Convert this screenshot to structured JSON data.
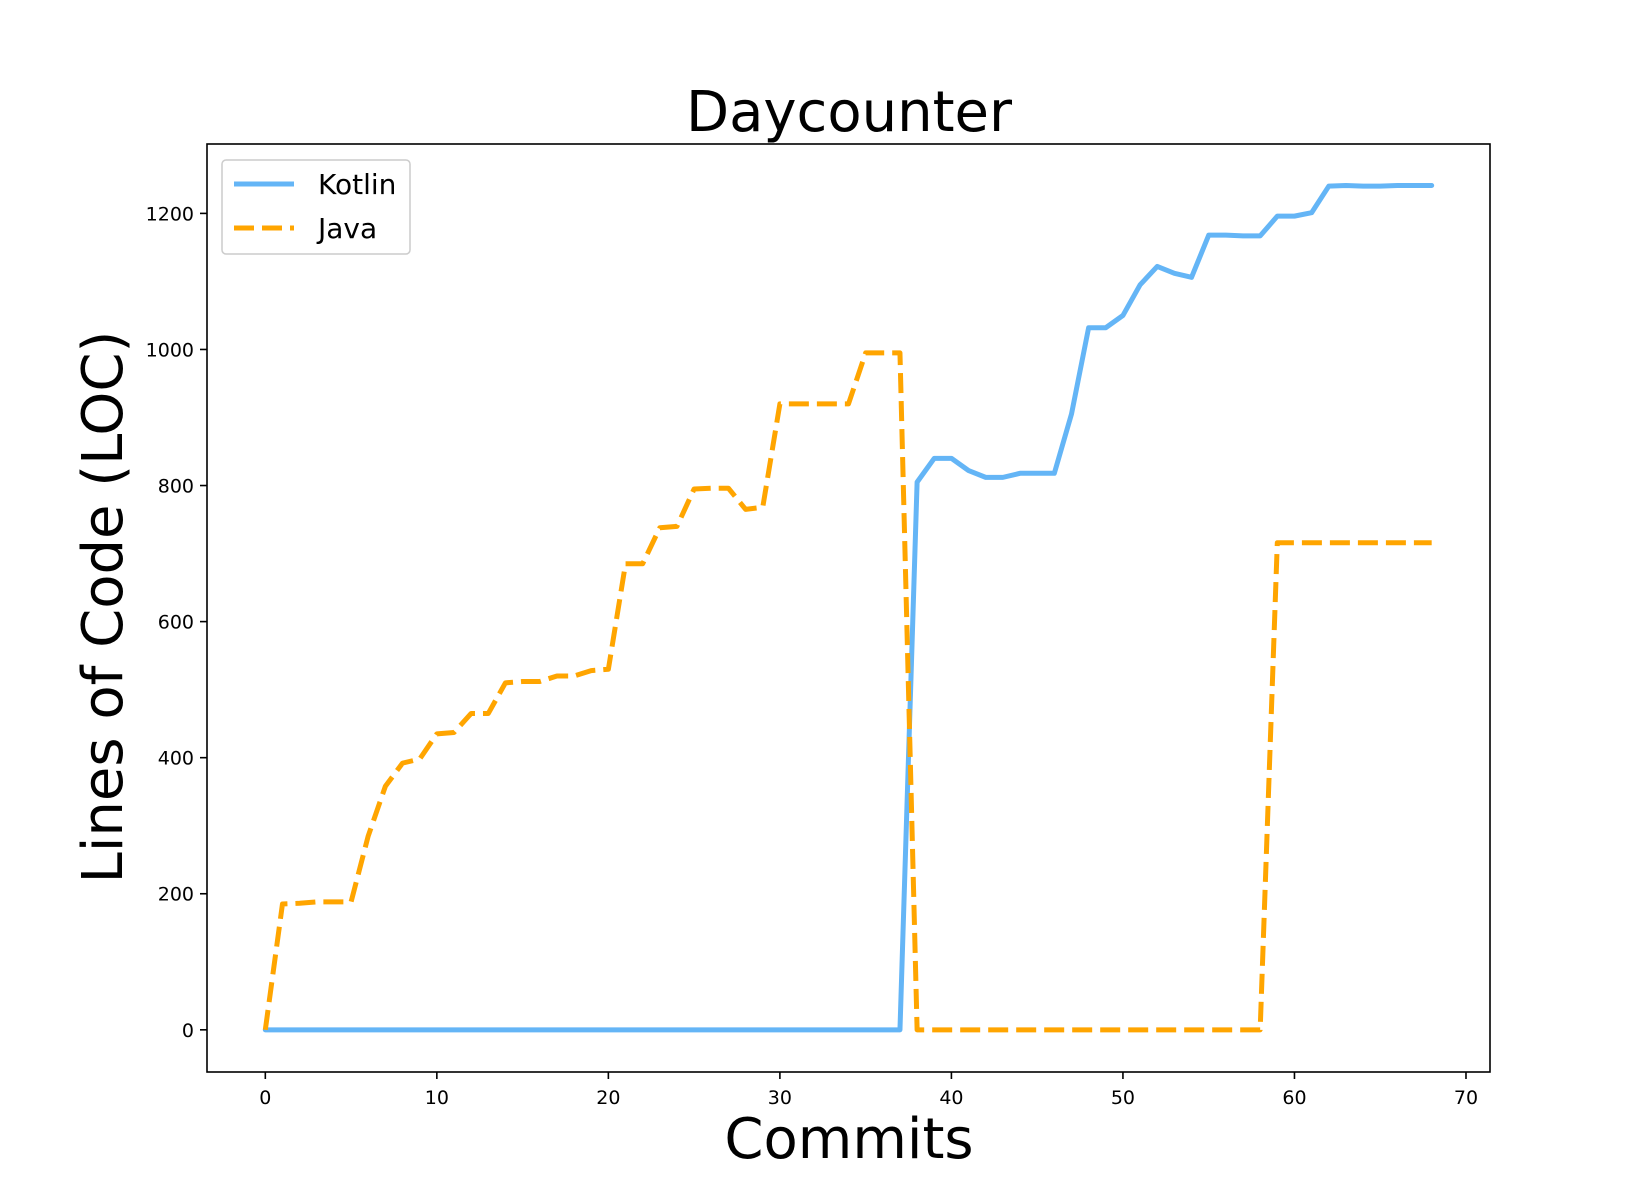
{
  "chart_data": {
    "type": "line",
    "title": "Daycounter",
    "xlabel": "Commits",
    "ylabel": "Lines of Code (LOC)",
    "xlim": [
      -3.4,
      71.4
    ],
    "ylim": [
      -62,
      1302
    ],
    "xticks": [
      0,
      10,
      20,
      30,
      40,
      50,
      60,
      70
    ],
    "yticks": [
      0,
      200,
      400,
      600,
      800,
      1000,
      1200
    ],
    "grid": false,
    "legend_position": "top-left",
    "series": [
      {
        "name": "Kotlin",
        "color": "#64b5f6",
        "style": "solid",
        "x": [
          0,
          1,
          2,
          3,
          4,
          5,
          6,
          7,
          8,
          9,
          10,
          11,
          12,
          13,
          14,
          15,
          16,
          17,
          18,
          19,
          20,
          21,
          22,
          23,
          24,
          25,
          26,
          27,
          28,
          29,
          30,
          31,
          32,
          33,
          34,
          35,
          36,
          37,
          38,
          39,
          40,
          41,
          42,
          43,
          44,
          45,
          46,
          47,
          48,
          49,
          50,
          51,
          52,
          53,
          54,
          55,
          56,
          57,
          58,
          59,
          60,
          61,
          62,
          63,
          64,
          65,
          66,
          67,
          68
        ],
        "y": [
          0,
          0,
          0,
          0,
          0,
          0,
          0,
          0,
          0,
          0,
          0,
          0,
          0,
          0,
          0,
          0,
          0,
          0,
          0,
          0,
          0,
          0,
          0,
          0,
          0,
          0,
          0,
          0,
          0,
          0,
          0,
          0,
          0,
          0,
          0,
          0,
          0,
          0,
          805,
          840,
          840,
          822,
          812,
          812,
          818,
          818,
          818,
          905,
          1032,
          1032,
          1050,
          1095,
          1122,
          1112,
          1106,
          1168,
          1168,
          1167,
          1167,
          1196,
          1196,
          1201,
          1240,
          1241,
          1240,
          1240,
          1241,
          1241,
          1241
        ]
      },
      {
        "name": "Java",
        "color": "#ffa500",
        "style": "dashed",
        "x": [
          0,
          1,
          2,
          3,
          4,
          5,
          6,
          7,
          8,
          9,
          10,
          11,
          12,
          13,
          14,
          15,
          16,
          17,
          18,
          19,
          20,
          21,
          22,
          23,
          24,
          25,
          26,
          27,
          28,
          29,
          30,
          31,
          32,
          33,
          34,
          35,
          36,
          37,
          38,
          39,
          40,
          41,
          42,
          43,
          44,
          45,
          46,
          47,
          48,
          49,
          50,
          51,
          52,
          53,
          54,
          55,
          56,
          57,
          58,
          59,
          60,
          61,
          62,
          63,
          64,
          65,
          66,
          67,
          68
        ],
        "y": [
          0,
          185,
          186,
          188,
          188,
          188,
          285,
          358,
          392,
          398,
          435,
          437,
          465,
          465,
          510,
          512,
          512,
          520,
          520,
          528,
          530,
          685,
          685,
          738,
          740,
          795,
          796,
          796,
          765,
          768,
          920,
          920,
          920,
          920,
          920,
          995,
          995,
          995,
          0,
          0,
          0,
          0,
          0,
          0,
          0,
          0,
          0,
          0,
          0,
          0,
          0,
          0,
          0,
          0,
          0,
          0,
          0,
          0,
          0,
          716,
          716,
          716,
          716,
          716,
          716,
          716,
          716,
          716,
          716
        ]
      }
    ]
  }
}
